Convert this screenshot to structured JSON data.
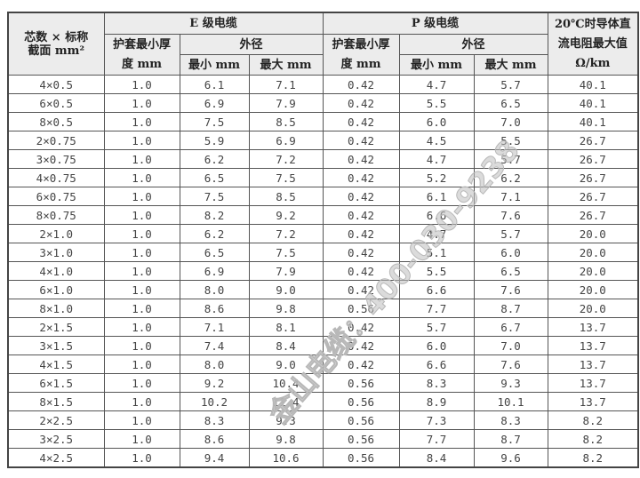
{
  "header": {
    "spec": "芯数 × 标称\n截面 mm²",
    "e_grade": "E 级电缆",
    "p_grade": "P 级电缆",
    "resistance": "20℃时导体直流电阻最大值 Ω/km",
    "sheath_min": "护套最小厚度 mm",
    "outer_dia": "外径",
    "min_mm": "最小 mm",
    "max_mm": "最大 mm"
  },
  "rows": [
    [
      "4×0.5",
      "1.0",
      "6.1",
      "7.1",
      "0.42",
      "4.7",
      "5.7",
      "40.1"
    ],
    [
      "6×0.5",
      "1.0",
      "6.9",
      "7.9",
      "0.42",
      "5.5",
      "6.5",
      "40.1"
    ],
    [
      "8×0.5",
      "1.0",
      "7.5",
      "8.5",
      "0.42",
      "6.0",
      "7.0",
      "40.1"
    ],
    [
      "2×0.75",
      "1.0",
      "5.9",
      "6.9",
      "0.42",
      "4.5",
      "5.5",
      "26.7"
    ],
    [
      "3×0.75",
      "1.0",
      "6.2",
      "7.2",
      "0.42",
      "4.7",
      "5.7",
      "26.7"
    ],
    [
      "4×0.75",
      "1.0",
      "6.5",
      "7.5",
      "0.42",
      "5.2",
      "6.2",
      "26.7"
    ],
    [
      "6×0.75",
      "1.0",
      "7.5",
      "8.5",
      "0.42",
      "6.1",
      "7.1",
      "26.7"
    ],
    [
      "8×0.75",
      "1.0",
      "8.2",
      "9.2",
      "0.42",
      "6.6",
      "7.6",
      "26.7"
    ],
    [
      "2×1.0",
      "1.0",
      "6.2",
      "7.2",
      "0.42",
      "4.7",
      "5.7",
      "20.0"
    ],
    [
      "3×1.0",
      "1.0",
      "6.5",
      "7.5",
      "0.42",
      "5.1",
      "6.0",
      "20.0"
    ],
    [
      "4×1.0",
      "1.0",
      "6.9",
      "7.9",
      "0.42",
      "5.5",
      "6.5",
      "20.0"
    ],
    [
      "6×1.0",
      "1.0",
      "8.0",
      "9.0",
      "0.42",
      "6.6",
      "7.6",
      "20.0"
    ],
    [
      "8×1.0",
      "1.0",
      "8.6",
      "9.8",
      "0.56",
      "7.7",
      "8.7",
      "20.0"
    ],
    [
      "2×1.5",
      "1.0",
      "7.1",
      "8.1",
      "0.42",
      "5.7",
      "6.7",
      "13.7"
    ],
    [
      "3×1.5",
      "1.0",
      "7.4",
      "8.4",
      "0.42",
      "6.0",
      "7.0",
      "13.7"
    ],
    [
      "4×1.5",
      "1.0",
      "8.0",
      "9.0",
      "0.42",
      "6.6",
      "7.6",
      "13.7"
    ],
    [
      "6×1.5",
      "1.0",
      "9.2",
      "10.4",
      "0.56",
      "8.3",
      "9.3",
      "13.7"
    ],
    [
      "8×1.5",
      "1.0",
      "10.2",
      "11.4",
      "0.56",
      "8.9",
      "10.1",
      "13.7"
    ],
    [
      "2×2.5",
      "1.0",
      "8.3",
      "9.3",
      "0.56",
      "7.3",
      "8.3",
      "8.2"
    ],
    [
      "3×2.5",
      "1.0",
      "8.6",
      "9.8",
      "0.56",
      "7.7",
      "8.7",
      "8.2"
    ],
    [
      "4×2.5",
      "1.0",
      "9.4",
      "10.6",
      "0.56",
      "8.4",
      "9.6",
      "8.2"
    ]
  ],
  "watermark": "金山电缆：400-030-9238"
}
